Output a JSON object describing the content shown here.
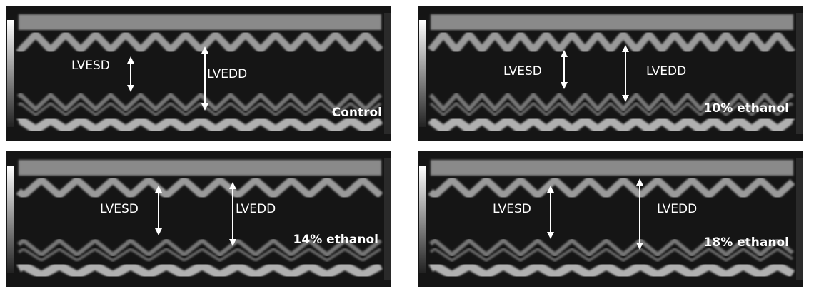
{
  "panels": [
    {
      "label": "Control",
      "lvesd": "LVESD",
      "lvedd": "LVEDD"
    },
    {
      "label": "10% ethanol",
      "lvesd": "LVESD",
      "lvedd": "LVEDD"
    },
    {
      "label": "14% ethanol",
      "lvesd": "LVESD",
      "lvedd": "LVEDD"
    },
    {
      "label": "18% ethanol",
      "lvesd": "LVESD",
      "lvedd": "LVEDD"
    }
  ]
}
